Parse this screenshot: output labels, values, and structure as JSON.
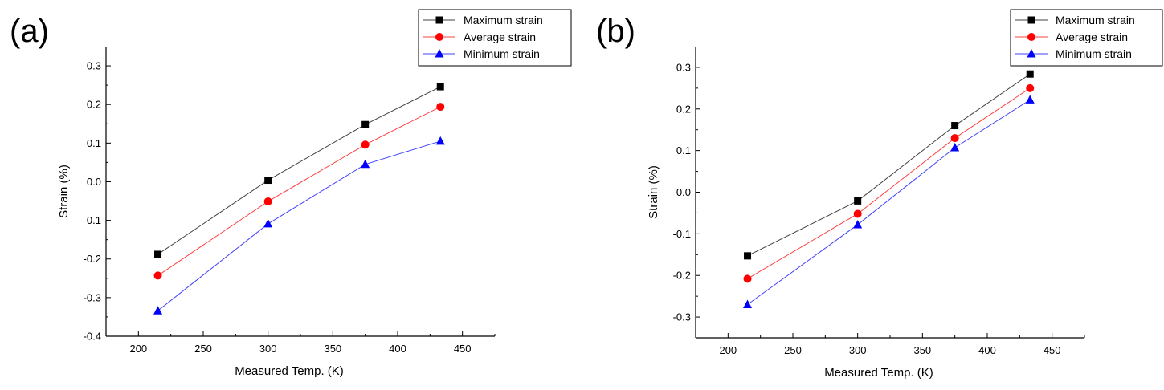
{
  "chart_data": [
    {
      "panel_label": "(a)",
      "type": "line",
      "xlabel": "Measured Temp. (K)",
      "ylabel": "Strain (%)",
      "xlim": [
        175,
        475
      ],
      "ylim": [
        -0.4,
        0.35
      ],
      "x_ticks": [
        200,
        250,
        300,
        350,
        400,
        450
      ],
      "y_ticks": [
        -0.4,
        -0.3,
        -0.2,
        -0.1,
        0.0,
        0.1,
        0.2,
        0.3
      ],
      "legend_position": "top-right",
      "grid": false,
      "series": [
        {
          "name": "Maximum strain",
          "color": "#000000",
          "marker": "square",
          "x": [
            215,
            300,
            375,
            433
          ],
          "y": [
            -0.188,
            0.004,
            0.148,
            0.246
          ]
        },
        {
          "name": "Average strain",
          "color": "#ff0000",
          "marker": "circle",
          "x": [
            215,
            300,
            375,
            433
          ],
          "y": [
            -0.243,
            -0.051,
            0.096,
            0.194
          ]
        },
        {
          "name": "Minimum strain",
          "color": "#0000ff",
          "marker": "triangle",
          "x": [
            215,
            300,
            375,
            433
          ],
          "y": [
            -0.334,
            -0.109,
            0.045,
            0.105
          ]
        }
      ]
    },
    {
      "panel_label": "(b)",
      "type": "line",
      "xlabel": "Measured Temp. (K)",
      "ylabel": "Strain (%)",
      "xlim": [
        175,
        475
      ],
      "ylim": [
        -0.35,
        0.35
      ],
      "x_ticks": [
        200,
        250,
        300,
        350,
        400,
        450
      ],
      "y_ticks": [
        -0.3,
        -0.2,
        -0.1,
        0.0,
        0.1,
        0.2,
        0.3
      ],
      "legend_position": "top-right",
      "grid": false,
      "series": [
        {
          "name": "Maximum strain",
          "color": "#000000",
          "marker": "square",
          "x": [
            215,
            300,
            375,
            433
          ],
          "y": [
            -0.153,
            -0.021,
            0.16,
            0.284
          ]
        },
        {
          "name": "Average strain",
          "color": "#ff0000",
          "marker": "circle",
          "x": [
            215,
            300,
            375,
            433
          ],
          "y": [
            -0.208,
            -0.052,
            0.13,
            0.25
          ]
        },
        {
          "name": "Minimum strain",
          "color": "#0000ff",
          "marker": "triangle",
          "x": [
            215,
            300,
            375,
            433
          ],
          "y": [
            -0.27,
            -0.078,
            0.107,
            0.222
          ]
        }
      ]
    }
  ]
}
